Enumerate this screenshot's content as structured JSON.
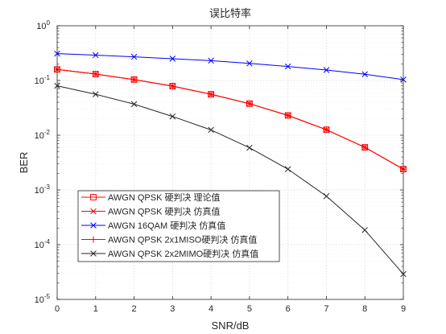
{
  "chart_data": {
    "type": "line",
    "title": "误比特率",
    "xlabel": "SNR/dB",
    "ylabel": "BER",
    "xlim": [
      0,
      9
    ],
    "ylim_exponent": [
      -5,
      0
    ],
    "yscale": "log",
    "grid": true,
    "legend_position": "bottom-left",
    "x_ticks": [
      "0",
      "1",
      "2",
      "3",
      "4",
      "5",
      "6",
      "7",
      "8",
      "9"
    ],
    "y_tick_base": "10",
    "y_tick_exponents": [
      "0",
      "-1",
      "-2",
      "-3",
      "-4",
      "-5"
    ],
    "x": [
      0,
      1,
      2,
      3,
      4,
      5,
      6,
      7,
      8,
      9
    ],
    "series": [
      {
        "name": "AWGN QPSK 硬判决 理论值",
        "color": "#ff0000",
        "marker": "square",
        "values": [
          0.159,
          0.131,
          0.104,
          0.079,
          0.056,
          0.0377,
          0.023,
          0.0126,
          0.006,
          0.0024
        ]
      },
      {
        "name": "AWGN QPSK 硬判决 仿真值",
        "color": "#ff0000",
        "marker": "x",
        "values": [
          0.159,
          0.131,
          0.104,
          0.079,
          0.056,
          0.0377,
          0.023,
          0.0126,
          0.006,
          0.0024
        ]
      },
      {
        "name": "AWGN 16QAM 硬判决 仿真值",
        "color": "#0000ff",
        "marker": "x",
        "values": [
          0.31,
          0.29,
          0.27,
          0.25,
          0.23,
          0.205,
          0.18,
          0.155,
          0.13,
          0.104
        ]
      },
      {
        "name": "AWGN QPSK 2x1MISO硬判决 仿真值",
        "color": "#ff0000",
        "marker": "plus",
        "values": [
          0.159,
          0.131,
          0.104,
          0.079,
          0.056,
          0.0377,
          0.023,
          0.0126,
          0.006,
          0.0024
        ]
      },
      {
        "name": "AWGN QPSK 2x2MIMO硬判决 仿真值",
        "color": "#262626",
        "marker": "x",
        "values": [
          0.08,
          0.056,
          0.037,
          0.022,
          0.0125,
          0.0059,
          0.0024,
          0.00077,
          0.000185,
          2.9e-05
        ]
      }
    ]
  }
}
